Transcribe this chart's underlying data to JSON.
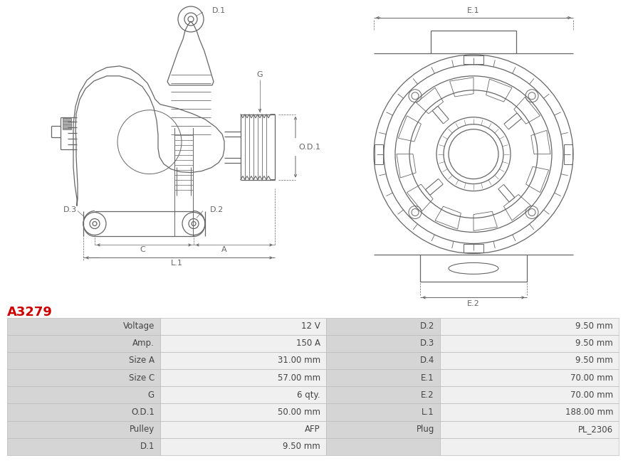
{
  "title": "A3279",
  "title_color": "#cc0000",
  "bg_color": "#ffffff",
  "table_border_color": "#bbbbbb",
  "table_text_color": "#444444",
  "lc": "#666666",
  "rows": [
    [
      "Voltage",
      "12 V",
      "D.2",
      "9.50 mm"
    ],
    [
      "Amp.",
      "150 A",
      "D.3",
      "9.50 mm"
    ],
    [
      "Size A",
      "31.00 mm",
      "D.4",
      "9.50 mm"
    ],
    [
      "Size C",
      "57.00 mm",
      "E.1",
      "70.00 mm"
    ],
    [
      "G",
      "6 qty.",
      "E.2",
      "70.00 mm"
    ],
    [
      "O.D.1",
      "50.00 mm",
      "L.1",
      "188.00 mm"
    ],
    [
      "Pulley",
      "AFP",
      "Plug",
      "PL_2306"
    ],
    [
      "D.1",
      "9.50 mm",
      "",
      ""
    ]
  ]
}
